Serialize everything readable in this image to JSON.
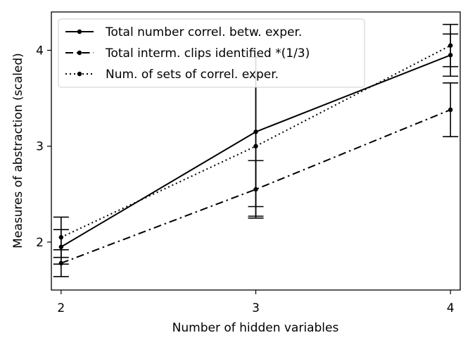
{
  "chart_data": {
    "type": "line",
    "xlabel": "Number of hidden variables",
    "ylabel": "Measures of abstraction (scaled)",
    "x": [
      2,
      3,
      4
    ],
    "xlim": [
      1.95,
      4.05
    ],
    "ylim": [
      1.5,
      4.4
    ],
    "xticks": [
      "2",
      "3",
      "4"
    ],
    "yticks": [
      "2",
      "3",
      "4"
    ],
    "grid": false,
    "legend_position": "top-left",
    "series": [
      {
        "name": "Total number correl. betw. exper.",
        "style": "solid",
        "values": [
          1.95,
          3.15,
          3.95
        ],
        "error_low": [
          1.77,
          2.37,
          3.73
        ],
        "error_high": [
          2.13,
          3.93,
          4.17
        ]
      },
      {
        "name": "Total interm. clips identified *(1/3)",
        "style": "dashdot",
        "values": [
          1.78,
          2.55,
          3.38
        ],
        "error_low": [
          1.64,
          2.25,
          3.1
        ],
        "error_high": [
          1.92,
          2.85,
          3.66
        ]
      },
      {
        "name": "Num. of sets of correl. exper.",
        "style": "dotted",
        "values": [
          2.05,
          3.0,
          4.05
        ],
        "error_low": [
          1.84,
          2.27,
          3.83
        ],
        "error_high": [
          2.26,
          3.73,
          4.27
        ]
      }
    ],
    "color": "#000000"
  }
}
